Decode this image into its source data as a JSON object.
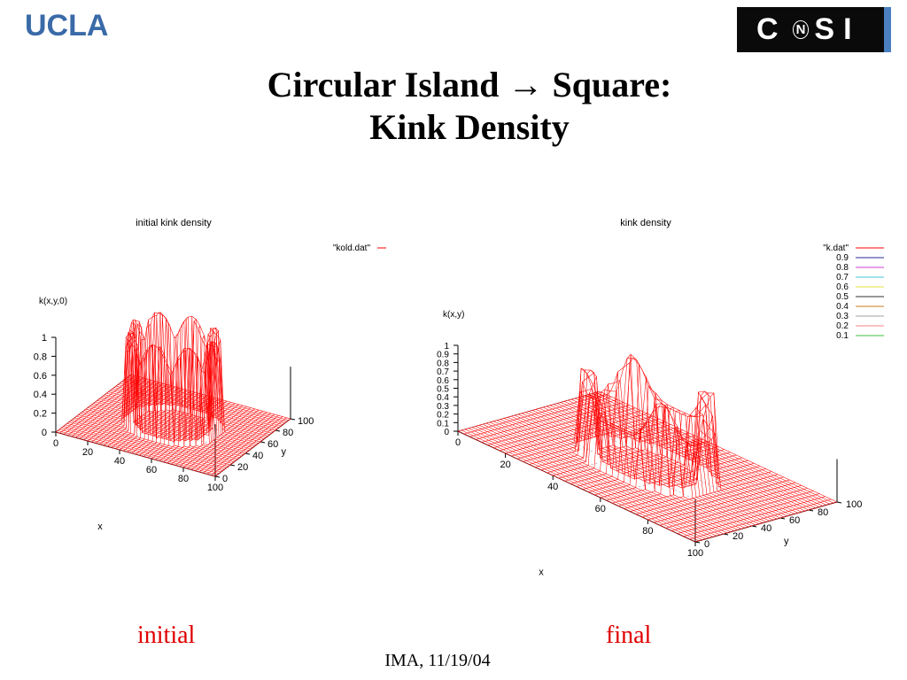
{
  "header": {
    "logo_left": "UCLA",
    "logo_right_left": "C",
    "logo_right_n": "N",
    "logo_right_right": "SI"
  },
  "title_line1": "Circular Island → Square:",
  "title_line2": "Kink Density",
  "captions": {
    "left": "initial",
    "right": "final"
  },
  "footer": "IMA, 11/19/04",
  "colors": {
    "surface": "#ff0000",
    "caption": "#e00000",
    "ucla_blue": "#3a6aa8",
    "cnsi_bar": "#4a7fc0"
  },
  "chart_data": [
    {
      "type": "surface3d",
      "title": "initial kink density",
      "zlabel": "k(x,y,0)",
      "xlabel": "x",
      "ylabel": "y",
      "legend": [
        {
          "label": "\"kold.dat\"",
          "color": "#ff0000"
        }
      ],
      "ztick_labels": [
        "0",
        "0.2",
        "0.4",
        "0.6",
        "0.8",
        "1"
      ],
      "xtick_labels": [
        "0",
        "20",
        "40",
        "60",
        "80",
        "100"
      ],
      "ytick_labels": [
        "0",
        "20",
        "40",
        "60",
        "80",
        "100"
      ],
      "xlim": [
        0,
        100
      ],
      "ylim": [
        0,
        100
      ],
      "zlim": [
        0,
        1
      ],
      "description_values": {
        "ring_center": [
          50,
          50
        ],
        "ring_radius": 25,
        "max_value": 1,
        "baseline_value": 0
      }
    },
    {
      "type": "surface3d",
      "title": "kink density",
      "zlabel": "k(x,y)",
      "xlabel": "x",
      "ylabel": "y",
      "legend": [
        {
          "label": "\"k.dat\"",
          "color": "#ff0000"
        },
        {
          "label": "0.9",
          "color": "#2a2a9c"
        },
        {
          "label": "0.8",
          "color": "#d040d0"
        },
        {
          "label": "0.7",
          "color": "#40c8d8"
        },
        {
          "label": "0.6",
          "color": "#e0e040"
        },
        {
          "label": "0.5",
          "color": "#303030"
        },
        {
          "label": "0.4",
          "color": "#c87820"
        },
        {
          "label": "0.3",
          "color": "#a0a0a0"
        },
        {
          "label": "0.2",
          "color": "#ff8080"
        },
        {
          "label": "0.1",
          "color": "#40c040"
        }
      ],
      "ztick_labels": [
        "0",
        "0.1",
        "0.2",
        "0.3",
        "0.4",
        "0.5",
        "0.6",
        "0.7",
        "0.8",
        "0.9",
        "1"
      ],
      "xtick_labels": [
        "0",
        "20",
        "40",
        "60",
        "80",
        "100"
      ],
      "ytick_labels": [
        "0",
        "20",
        "40",
        "60",
        "80",
        "100"
      ],
      "xlim": [
        0,
        100
      ],
      "ylim": [
        0,
        100
      ],
      "zlim": [
        0,
        1
      ]
    }
  ]
}
